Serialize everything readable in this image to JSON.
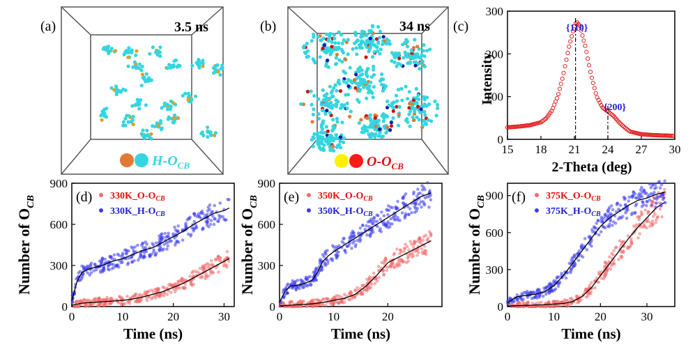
{
  "panels_top": [
    {
      "label": "(a)",
      "time": "3.5 ns",
      "legend_text": "H-O",
      "legend_sub": "CB",
      "legend_colors": [
        "#E07A34",
        "#33D6E0"
      ],
      "legend_color_text": "#33D6E0"
    },
    {
      "label": "(b)",
      "time": "34 ns",
      "legend_text": "O-O",
      "legend_sub": "CB",
      "legend_colors": [
        "#FFF200",
        "#FF1A1A"
      ],
      "legend_color_text": "#E01010"
    }
  ],
  "xrd": {
    "label": "(c)",
    "peak1": "{110}",
    "peak2": "{200}",
    "xlabel": "2-Theta (deg)",
    "ylabel": "Intensity",
    "xticks": [
      "15",
      "18",
      "21",
      "24",
      "27",
      "30"
    ],
    "yticks": [
      "0",
      "100",
      "200",
      "300"
    ]
  },
  "chart_data": [
    {
      "type": "line",
      "xlabel": "2-Theta (deg)",
      "ylabel": "Intensity",
      "xlim": [
        15,
        30
      ],
      "ylim": [
        0,
        300
      ],
      "x": [
        15,
        16,
        17,
        18,
        18.5,
        19,
        19.5,
        20,
        20.5,
        21,
        21.2,
        21.5,
        22,
        22.5,
        23,
        23.5,
        24,
        24.5,
        25,
        25.5,
        26,
        27,
        28,
        29,
        30
      ],
      "y": [
        28,
        30,
        33,
        40,
        50,
        68,
        100,
        150,
        215,
        265,
        275,
        265,
        215,
        150,
        100,
        75,
        65,
        55,
        40,
        28,
        18,
        12,
        10,
        9,
        8
      ],
      "peaks": [
        {
          "x": 21.1,
          "label": "{110}"
        },
        {
          "x": 24.0,
          "label": "{200}"
        }
      ],
      "color": "#E01010"
    },
    {
      "type": "scatter",
      "label": "(d)",
      "xlabel": "Time (ns)",
      "ylabel": "Number of O",
      "xlim": [
        0,
        32
      ],
      "ylim": [
        0,
        900
      ],
      "xticks": [
        "0",
        "10",
        "20",
        "30"
      ],
      "yticks": [
        "0",
        "300",
        "600",
        "900"
      ],
      "series": [
        {
          "name": "330K_O-O",
          "color": "#F26A6A",
          "x": [
            0,
            2,
            4,
            6,
            8,
            10,
            12,
            14,
            16,
            18,
            20,
            22,
            24,
            26,
            28,
            30,
            31
          ],
          "y": [
            10,
            25,
            30,
            35,
            40,
            45,
            55,
            70,
            90,
            110,
            140,
            170,
            210,
            250,
            290,
            330,
            350
          ]
        },
        {
          "name": "330K_H-O",
          "color": "#3C3CF0",
          "x": [
            0,
            1,
            2,
            3,
            4,
            6,
            8,
            10,
            12,
            14,
            16,
            18,
            20,
            22,
            24,
            26,
            28,
            30,
            31
          ],
          "y": [
            40,
            180,
            250,
            270,
            280,
            300,
            330,
            350,
            380,
            410,
            430,
            470,
            510,
            550,
            600,
            640,
            680,
            700,
            720
          ]
        }
      ]
    },
    {
      "type": "scatter",
      "label": "(e)",
      "xlabel": "Time (ns)",
      "ylabel": "Number of O",
      "xlim": [
        0,
        30
      ],
      "ylim": [
        0,
        900
      ],
      "xticks": [
        "0",
        "10",
        "20"
      ],
      "yticks": [
        "0",
        "300",
        "600",
        "900"
      ],
      "series": [
        {
          "name": "350K_O-O",
          "color": "#F26A6A",
          "x": [
            0,
            2,
            4,
            6,
            8,
            10,
            12,
            14,
            16,
            18,
            20,
            22,
            24,
            26,
            28
          ],
          "y": [
            5,
            10,
            15,
            20,
            30,
            45,
            60,
            90,
            150,
            230,
            320,
            360,
            400,
            440,
            480
          ]
        },
        {
          "name": "350K_H-O",
          "color": "#3C3CF0",
          "x": [
            0,
            1,
            2,
            4,
            6,
            7,
            8,
            9,
            10,
            12,
            14,
            16,
            18,
            20,
            22,
            24,
            26,
            28
          ],
          "y": [
            30,
            110,
            150,
            160,
            190,
            250,
            330,
            370,
            400,
            450,
            500,
            550,
            600,
            650,
            700,
            750,
            800,
            830
          ]
        }
      ]
    },
    {
      "type": "scatter",
      "label": "(f)",
      "xlabel": "Time (ns)",
      "ylabel": "Number of O",
      "xlim": [
        0,
        36
      ],
      "ylim": [
        0,
        1000
      ],
      "xticks": [
        "0",
        "10",
        "20",
        "30"
      ],
      "yticks": [
        "0",
        "300",
        "600",
        "900"
      ],
      "series": [
        {
          "name": "375K_O-O",
          "color": "#F26A6A",
          "x": [
            0,
            4,
            8,
            12,
            14,
            16,
            18,
            20,
            22,
            24,
            26,
            28,
            30,
            32,
            34
          ],
          "y": [
            5,
            10,
            15,
            25,
            40,
            80,
            150,
            250,
            350,
            450,
            550,
            640,
            720,
            800,
            850
          ]
        },
        {
          "name": "375K_H-O",
          "color": "#3C3CF0",
          "x": [
            0,
            2,
            4,
            6,
            8,
            10,
            12,
            14,
            16,
            18,
            20,
            22,
            24,
            26,
            28,
            30,
            32,
            34
          ],
          "y": [
            30,
            80,
            90,
            100,
            120,
            170,
            250,
            350,
            450,
            550,
            650,
            720,
            770,
            820,
            860,
            880,
            910,
            930
          ]
        }
      ]
    }
  ],
  "legend_sub": "CB",
  "ylabel_sub": "CB"
}
